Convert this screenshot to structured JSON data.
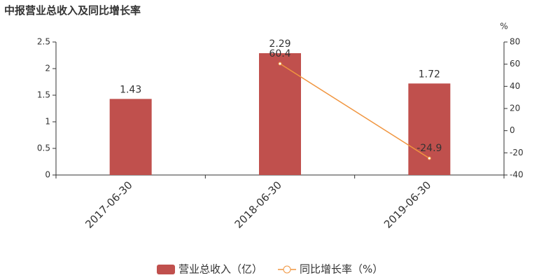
{
  "chart_data": {
    "type": "bar",
    "title": "中报营业总收入及同比增长率",
    "categories": [
      "2017-06-30",
      "2018-06-30",
      "2019-06-30"
    ],
    "series": [
      {
        "name": "营业总收入（亿）",
        "type": "bar",
        "color": "#c0504d",
        "values": [
          1.43,
          2.29,
          1.72
        ]
      },
      {
        "name": "同比增长率（%）",
        "type": "line",
        "axis": "y2",
        "color": "#f0953f",
        "values": [
          null,
          60.4,
          -24.9
        ]
      }
    ],
    "ylim": [
      0,
      2.5
    ],
    "yticks": [
      0,
      0.5,
      1,
      1.5,
      2,
      2.5
    ],
    "y2lim": [
      -40,
      80
    ],
    "y2ticks": [
      -40,
      -20,
      0,
      20,
      40,
      60,
      80
    ],
    "y2_unit": "%",
    "grid": false,
    "legend": "bottom"
  }
}
